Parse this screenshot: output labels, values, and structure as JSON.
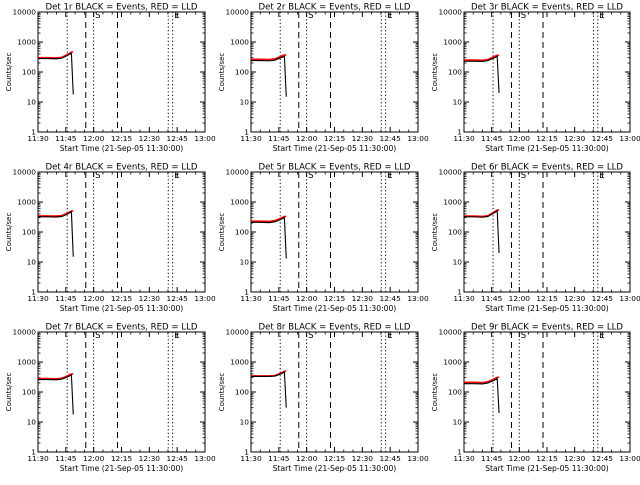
{
  "chart_data": [
    {
      "type": "line",
      "title": "Det 1r BLACK = Events, RED = LLD",
      "xlabel": "Start Time (21-Sep-05 11:30:00)",
      "ylabel": "Counts/sec",
      "yscale": "log",
      "ylim": [
        1,
        10000
      ],
      "x_ticks": [
        "11:30",
        "11:45",
        "12:00",
        "12:15",
        "12:30",
        "12:45",
        "13:00"
      ],
      "y_ticks": [
        "1",
        "10",
        "100",
        "1000",
        "10000"
      ],
      "grid": false,
      "vertical_markers": [
        {
          "label": "",
          "style": "dotted"
        },
        {
          "label": "",
          "style": "dashed"
        },
        {
          "label": "S",
          "style": "dotted"
        },
        {
          "label": "",
          "style": "dashed"
        },
        {
          "label": "",
          "style": "dotted"
        },
        {
          "label": "E",
          "style": "dotted"
        }
      ],
      "series": [
        {
          "name": "Events",
          "color": "#000000",
          "x": [
            "11:30",
            "11:35",
            "11:40",
            "11:43",
            "11:46",
            "11:48",
            "11:49"
          ],
          "y": [
            280,
            280,
            275,
            290,
            360,
            420,
            18
          ]
        },
        {
          "name": "LLD",
          "color": "#ff0000",
          "x": [
            "11:30",
            "11:35",
            "11:40",
            "11:43",
            "11:46",
            "11:48",
            "11:49"
          ],
          "y": [
            300,
            300,
            295,
            310,
            390,
            460,
            460
          ]
        }
      ]
    },
    {
      "type": "line",
      "title": "Det 2r BLACK = Events, RED = LLD",
      "xlabel": "Start Time (21-Sep-05 11:30:00)",
      "ylabel": "Counts/sec",
      "yscale": "log",
      "ylim": [
        1,
        10000
      ],
      "x_ticks": [
        "11:30",
        "11:45",
        "12:00",
        "12:15",
        "12:30",
        "12:45",
        "13:00"
      ],
      "y_ticks": [
        "1",
        "10",
        "100",
        "1000",
        "10000"
      ],
      "grid": false,
      "vertical_markers": [
        {
          "label": "",
          "style": "dotted"
        },
        {
          "label": "",
          "style": "dashed"
        },
        {
          "label": "S",
          "style": "dotted"
        },
        {
          "label": "",
          "style": "dashed"
        },
        {
          "label": "",
          "style": "dotted"
        },
        {
          "label": "E",
          "style": "dotted"
        }
      ],
      "series": [
        {
          "name": "Events",
          "color": "#000000",
          "x": [
            "11:30",
            "11:35",
            "11:40",
            "11:43",
            "11:46",
            "11:48",
            "11:49"
          ],
          "y": [
            240,
            240,
            235,
            250,
            300,
            330,
            15
          ]
        },
        {
          "name": "LLD",
          "color": "#ff0000",
          "x": [
            "11:30",
            "11:35",
            "11:40",
            "11:43",
            "11:46",
            "11:48",
            "11:49"
          ],
          "y": [
            265,
            265,
            260,
            275,
            330,
            370,
            370
          ]
        }
      ]
    },
    {
      "type": "line",
      "title": "Det 3r BLACK = Events, RED = LLD",
      "xlabel": "Start Time (21-Sep-05 11:30:00)",
      "ylabel": "Counts/sec",
      "yscale": "log",
      "ylim": [
        1,
        10000
      ],
      "x_ticks": [
        "11:30",
        "11:45",
        "12:00",
        "12:15",
        "12:30",
        "12:45",
        "13:00"
      ],
      "y_ticks": [
        "1",
        "10",
        "100",
        "1000",
        "10000"
      ],
      "grid": false,
      "vertical_markers": [
        {
          "label": "",
          "style": "dotted"
        },
        {
          "label": "",
          "style": "dashed"
        },
        {
          "label": "S",
          "style": "dotted"
        },
        {
          "label": "",
          "style": "dashed"
        },
        {
          "label": "",
          "style": "dotted"
        },
        {
          "label": "E",
          "style": "dotted"
        }
      ],
      "series": [
        {
          "name": "Events",
          "color": "#000000",
          "x": [
            "11:30",
            "11:35",
            "11:40",
            "11:43",
            "11:46",
            "11:48",
            "11:49"
          ],
          "y": [
            230,
            230,
            225,
            240,
            290,
            330,
            20
          ]
        },
        {
          "name": "LLD",
          "color": "#ff0000",
          "x": [
            "11:30",
            "11:35",
            "11:40",
            "11:43",
            "11:46",
            "11:48",
            "11:49"
          ],
          "y": [
            250,
            250,
            245,
            260,
            320,
            360,
            360
          ]
        }
      ]
    },
    {
      "type": "line",
      "title": "Det 4r BLACK = Events, RED = LLD",
      "xlabel": "Start Time (21-Sep-05 11:30:00)",
      "ylabel": "Counts/sec",
      "yscale": "log",
      "ylim": [
        1,
        10000
      ],
      "x_ticks": [
        "11:30",
        "11:45",
        "12:00",
        "12:15",
        "12:30",
        "12:45",
        "13:00"
      ],
      "y_ticks": [
        "1",
        "10",
        "100",
        "1000",
        "10000"
      ],
      "grid": false,
      "vertical_markers": [
        {
          "label": "",
          "style": "dotted"
        },
        {
          "label": "",
          "style": "dashed"
        },
        {
          "label": "S",
          "style": "dotted"
        },
        {
          "label": "",
          "style": "dashed"
        },
        {
          "label": "",
          "style": "dotted"
        },
        {
          "label": "E",
          "style": "dotted"
        }
      ],
      "series": [
        {
          "name": "Events",
          "color": "#000000",
          "x": [
            "11:30",
            "11:35",
            "11:40",
            "11:43",
            "11:46",
            "11:48",
            "11:49"
          ],
          "y": [
            320,
            320,
            315,
            330,
            400,
            470,
            15
          ]
        },
        {
          "name": "LLD",
          "color": "#ff0000",
          "x": [
            "11:30",
            "11:35",
            "11:40",
            "11:43",
            "11:46",
            "11:48",
            "11:49"
          ],
          "y": [
            345,
            345,
            340,
            355,
            430,
            500,
            500
          ]
        }
      ]
    },
    {
      "type": "line",
      "title": "Det 5r BLACK = Events, RED = LLD",
      "xlabel": "Start Time (21-Sep-05 11:30:00)",
      "ylabel": "Counts/sec",
      "yscale": "log",
      "ylim": [
        1,
        10000
      ],
      "x_ticks": [
        "11:30",
        "11:45",
        "12:00",
        "12:15",
        "12:30",
        "12:45",
        "13:00"
      ],
      "y_ticks": [
        "1",
        "10",
        "100",
        "1000",
        "10000"
      ],
      "grid": false,
      "vertical_markers": [
        {
          "label": "",
          "style": "dotted"
        },
        {
          "label": "",
          "style": "dashed"
        },
        {
          "label": "S",
          "style": "dotted"
        },
        {
          "label": "",
          "style": "dashed"
        },
        {
          "label": "",
          "style": "dotted"
        },
        {
          "label": "E",
          "style": "dotted"
        }
      ],
      "series": [
        {
          "name": "Events",
          "color": "#000000",
          "x": [
            "11:30",
            "11:35",
            "11:40",
            "11:43",
            "11:46",
            "11:48",
            "11:49"
          ],
          "y": [
            210,
            210,
            205,
            220,
            260,
            300,
            13
          ]
        },
        {
          "name": "LLD",
          "color": "#ff0000",
          "x": [
            "11:30",
            "11:35",
            "11:40",
            "11:43",
            "11:46",
            "11:48",
            "11:49"
          ],
          "y": [
            230,
            230,
            225,
            240,
            285,
            330,
            330
          ]
        }
      ]
    },
    {
      "type": "line",
      "title": "Det 6r BLACK = Events, RED = LLD",
      "xlabel": "Start Time (21-Sep-05 11:30:00)",
      "ylabel": "Counts/sec",
      "yscale": "log",
      "ylim": [
        1,
        10000
      ],
      "x_ticks": [
        "11:30",
        "11:45",
        "12:00",
        "12:15",
        "12:30",
        "12:45",
        "13:00"
      ],
      "y_ticks": [
        "1",
        "10",
        "100",
        "1000",
        "10000"
      ],
      "grid": false,
      "vertical_markers": [
        {
          "label": "",
          "style": "dotted"
        },
        {
          "label": "",
          "style": "dashed"
        },
        {
          "label": "S",
          "style": "dotted"
        },
        {
          "label": "",
          "style": "dashed"
        },
        {
          "label": "",
          "style": "dotted"
        },
        {
          "label": "E",
          "style": "dotted"
        }
      ],
      "series": [
        {
          "name": "Events",
          "color": "#000000",
          "x": [
            "11:30",
            "11:35",
            "11:40",
            "11:43",
            "11:46",
            "11:48",
            "11:49"
          ],
          "y": [
            320,
            320,
            310,
            330,
            420,
            500,
            20
          ]
        },
        {
          "name": "LLD",
          "color": "#ff0000",
          "x": [
            "11:30",
            "11:35",
            "11:40",
            "11:43",
            "11:46",
            "11:48",
            "11:49"
          ],
          "y": [
            340,
            340,
            330,
            350,
            450,
            540,
            540
          ]
        }
      ]
    },
    {
      "type": "line",
      "title": "Det 7r BLACK = Events, RED = LLD",
      "xlabel": "Start Time (21-Sep-05 11:30:00)",
      "ylabel": "Counts/sec",
      "yscale": "log",
      "ylim": [
        1,
        10000
      ],
      "x_ticks": [
        "11:30",
        "11:45",
        "12:00",
        "12:15",
        "12:30",
        "12:45",
        "13:00"
      ],
      "y_ticks": [
        "1",
        "10",
        "100",
        "1000",
        "10000"
      ],
      "grid": false,
      "vertical_markers": [
        {
          "label": "",
          "style": "dotted"
        },
        {
          "label": "",
          "style": "dashed"
        },
        {
          "label": "S",
          "style": "dotted"
        },
        {
          "label": "",
          "style": "dashed"
        },
        {
          "label": "",
          "style": "dotted"
        },
        {
          "label": "E",
          "style": "dotted"
        }
      ],
      "series": [
        {
          "name": "Events",
          "color": "#000000",
          "x": [
            "11:30",
            "11:35",
            "11:40",
            "11:43",
            "11:46",
            "11:48",
            "11:49"
          ],
          "y": [
            260,
            260,
            255,
            270,
            320,
            370,
            18
          ]
        },
        {
          "name": "LLD",
          "color": "#ff0000",
          "x": [
            "11:30",
            "11:35",
            "11:40",
            "11:43",
            "11:46",
            "11:48",
            "11:49"
          ],
          "y": [
            280,
            280,
            275,
            290,
            350,
            400,
            400
          ]
        }
      ]
    },
    {
      "type": "line",
      "title": "Det 8r BLACK = Events, RED = LLD",
      "xlabel": "Start Time (21-Sep-05 11:30:00)",
      "ylabel": "Counts/sec",
      "yscale": "log",
      "ylim": [
        1,
        10000
      ],
      "x_ticks": [
        "11:30",
        "11:45",
        "12:00",
        "12:15",
        "12:30",
        "12:45",
        "13:00"
      ],
      "y_ticks": [
        "1",
        "10",
        "100",
        "1000",
        "10000"
      ],
      "grid": false,
      "vertical_markers": [
        {
          "label": "",
          "style": "dotted"
        },
        {
          "label": "",
          "style": "dashed"
        },
        {
          "label": "S",
          "style": "dotted"
        },
        {
          "label": "",
          "style": "dashed"
        },
        {
          "label": "",
          "style": "dotted"
        },
        {
          "label": "E",
          "style": "dotted"
        }
      ],
      "series": [
        {
          "name": "Events",
          "color": "#000000",
          "x": [
            "11:30",
            "11:35",
            "11:40",
            "11:43",
            "11:46",
            "11:48",
            "11:49"
          ],
          "y": [
            330,
            330,
            330,
            340,
            400,
            460,
            30
          ]
        },
        {
          "name": "LLD",
          "color": "#ff0000",
          "x": [
            "11:30",
            "11:35",
            "11:40",
            "11:43",
            "11:46",
            "11:48",
            "11:49"
          ],
          "y": [
            345,
            345,
            345,
            355,
            420,
            490,
            490
          ]
        }
      ]
    },
    {
      "type": "line",
      "title": "Det 9r BLACK = Events, RED = LLD",
      "xlabel": "Start Time (21-Sep-05 11:30:00)",
      "ylabel": "Counts/sec",
      "yscale": "log",
      "ylim": [
        1,
        10000
      ],
      "x_ticks": [
        "11:30",
        "11:45",
        "12:00",
        "12:15",
        "12:30",
        "12:45",
        "13:00"
      ],
      "y_ticks": [
        "1",
        "10",
        "100",
        "1000",
        "10000"
      ],
      "grid": false,
      "vertical_markers": [
        {
          "label": "",
          "style": "dotted"
        },
        {
          "label": "",
          "style": "dashed"
        },
        {
          "label": "S",
          "style": "dotted"
        },
        {
          "label": "",
          "style": "dashed"
        },
        {
          "label": "",
          "style": "dotted"
        },
        {
          "label": "E",
          "style": "dotted"
        }
      ],
      "series": [
        {
          "name": "Events",
          "color": "#000000",
          "x": [
            "11:30",
            "11:35",
            "11:40",
            "11:43",
            "11:46",
            "11:48",
            "11:49"
          ],
          "y": [
            190,
            190,
            185,
            200,
            240,
            280,
            20
          ]
        },
        {
          "name": "LLD",
          "color": "#ff0000",
          "x": [
            "11:30",
            "11:35",
            "11:40",
            "11:43",
            "11:46",
            "11:48",
            "11:49"
          ],
          "y": [
            210,
            210,
            205,
            220,
            265,
            310,
            310
          ]
        }
      ]
    }
  ]
}
